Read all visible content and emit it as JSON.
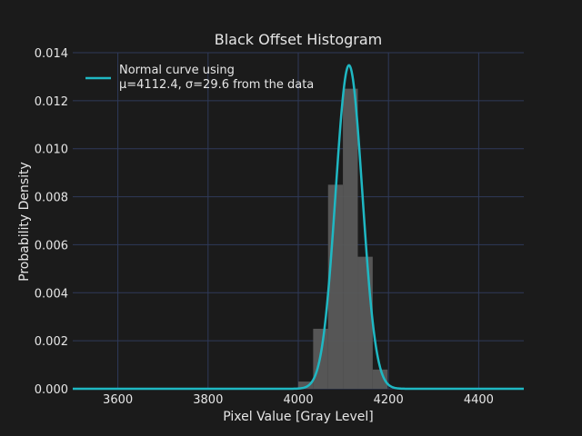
{
  "chart_data": {
    "type": "bar",
    "title": "Black Offset Histogram",
    "xlabel": "Pixel Value [Gray Level]",
    "ylabel": "Probability Density",
    "xlim": [
      3500,
      4500
    ],
    "ylim": [
      0,
      0.014
    ],
    "grid": true,
    "legend_position": "top-left",
    "x_ticks": [
      3600,
      3800,
      4000,
      4200,
      4400
    ],
    "y_ticks": [
      0.0,
      0.002,
      0.004,
      0.006,
      0.008,
      0.01,
      0.012,
      0.014
    ],
    "x_tick_labels": [
      "3600",
      "3800",
      "4000",
      "4200",
      "4400"
    ],
    "y_tick_labels": [
      "0.000",
      "0.002",
      "0.004",
      "0.006",
      "0.008",
      "0.010",
      "0.012",
      "0.014"
    ],
    "histogram": {
      "bins": [
        {
          "x0": 4000,
          "x1": 4033,
          "density": 0.0003
        },
        {
          "x0": 4033,
          "x1": 4066,
          "density": 0.0025
        },
        {
          "x0": 4066,
          "x1": 4099,
          "density": 0.0085
        },
        {
          "x0": 4099,
          "x1": 4132,
          "density": 0.0125
        },
        {
          "x0": 4132,
          "x1": 4165,
          "density": 0.0055
        },
        {
          "x0": 4165,
          "x1": 4198,
          "density": 0.0008
        }
      ],
      "color": "#5a5a5a"
    },
    "normal_curve": {
      "mu": 4112.4,
      "sigma": 29.6,
      "x_range": [
        3500,
        4500
      ],
      "color": "#1fb8c3"
    },
    "legend": {
      "line1": "Normal curve using",
      "line2": "μ=4112.4, σ=29.6 from the data"
    },
    "colors": {
      "background": "#1b1b1b",
      "grid": "#2f3a5a",
      "text": "#e6e6e6",
      "curve": "#1fb8c3",
      "bars": "#5a5a5a"
    }
  }
}
